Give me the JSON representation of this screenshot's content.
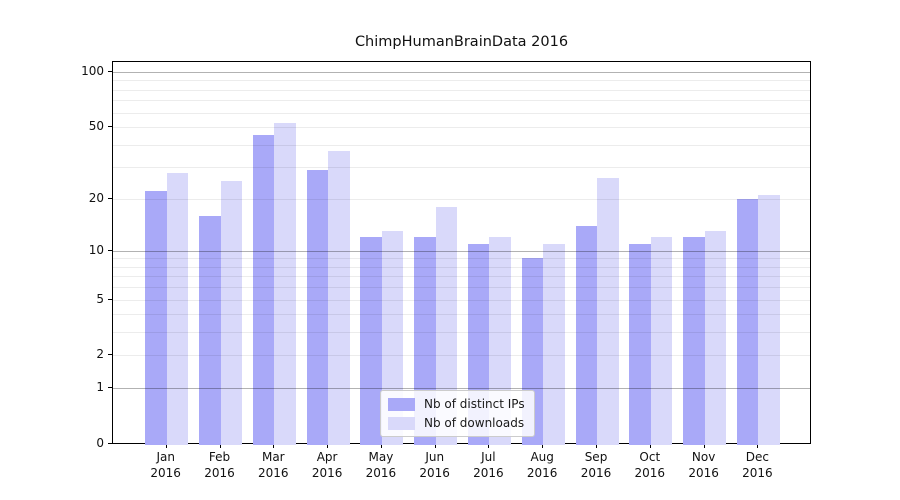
{
  "chart_data": {
    "type": "bar",
    "title": "ChimpHumanBrainData 2016",
    "categories": [
      "Jan",
      "Feb",
      "Mar",
      "Apr",
      "May",
      "Jun",
      "Jul",
      "Aug",
      "Sep",
      "Oct",
      "Nov",
      "Dec"
    ],
    "category_year": "2016",
    "series": [
      {
        "name": "Nb of distinct IPs",
        "color": "#a9a9f8",
        "values": [
          22,
          16,
          45,
          29,
          12,
          12,
          11,
          9,
          14,
          11,
          12,
          20
        ]
      },
      {
        "name": "Nb of downloads",
        "color": "#d9d9fa",
        "values": [
          28,
          25,
          53,
          37,
          13,
          18,
          12,
          11,
          26,
          12,
          13,
          21
        ]
      }
    ],
    "y_axis": {
      "scale": "log1p",
      "ticks": [
        0,
        1,
        2,
        5,
        10,
        20,
        50,
        100
      ],
      "major_gridlines": [
        1,
        10,
        100
      ],
      "minor_gridlines": [
        2,
        3,
        4,
        5,
        6,
        7,
        8,
        9,
        20,
        30,
        40,
        50,
        60,
        70,
        80,
        90
      ],
      "ylim": [
        0,
        113
      ]
    },
    "legend": {
      "position": "lower-center"
    },
    "grid": "both-drawn-above-bars",
    "xlabel": "",
    "ylabel": ""
  },
  "colors": {
    "spine": "#000000",
    "text": "#1a1a1a",
    "legend_border": "#cccccc"
  }
}
